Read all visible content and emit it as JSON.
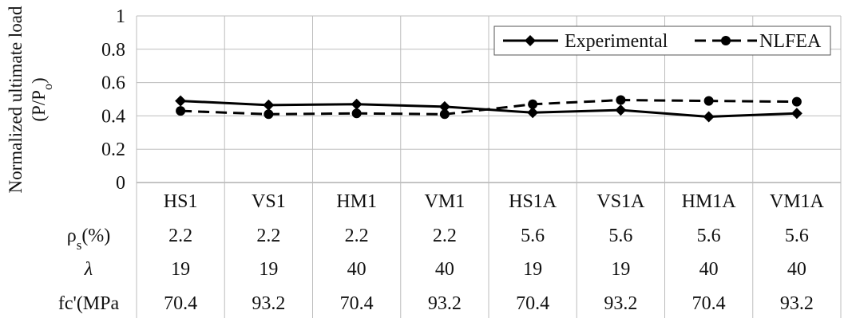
{
  "chart_data": {
    "type": "line",
    "ylabel_line1": "Normalized ultimate load",
    "ylabel_line2_prefix": "(P/P",
    "ylabel_line2_sub": "o",
    "ylabel_line2_suffix": ")",
    "ylim": [
      0,
      1
    ],
    "yticks": [
      0,
      0.2,
      0.4,
      0.6,
      0.8,
      1
    ],
    "ytick_labels": [
      "0",
      "0.2",
      "0.4",
      "0.6",
      "0.8",
      "1"
    ],
    "grid": true,
    "legend_position": "top-right",
    "categories": [
      "HS1",
      "VS1",
      "HM1",
      "VM1",
      "HS1A",
      "VS1A",
      "HM1A",
      "VM1A"
    ],
    "series": [
      {
        "name": "Experimental",
        "marker": "diamond",
        "line_style": "solid",
        "color": "#000000",
        "values": [
          0.49,
          0.465,
          0.47,
          0.455,
          0.42,
          0.435,
          0.395,
          0.415
        ]
      },
      {
        "name": "NLFEA",
        "marker": "circle",
        "line_style": "dashed",
        "color": "#000000",
        "values": [
          0.43,
          0.41,
          0.415,
          0.41,
          0.47,
          0.495,
          0.49,
          0.485
        ]
      }
    ],
    "table_rows": [
      {
        "label_main": "ρ",
        "label_sub": "s",
        "label_suffix": "(%)",
        "values": [
          "2.2",
          "2.2",
          "2.2",
          "2.2",
          "5.6",
          "5.6",
          "5.6",
          "5.6"
        ]
      },
      {
        "label_main": "λ",
        "label_sub": "",
        "label_suffix": "",
        "values": [
          "19",
          "19",
          "40",
          "40",
          "19",
          "19",
          "40",
          "40"
        ]
      },
      {
        "label_main": "fc'(MPa",
        "label_sub": "",
        "label_suffix": "",
        "values": [
          "70.4",
          "93.2",
          "70.4",
          "93.2",
          "70.4",
          "93.2",
          "70.4",
          "93.2"
        ]
      }
    ]
  }
}
